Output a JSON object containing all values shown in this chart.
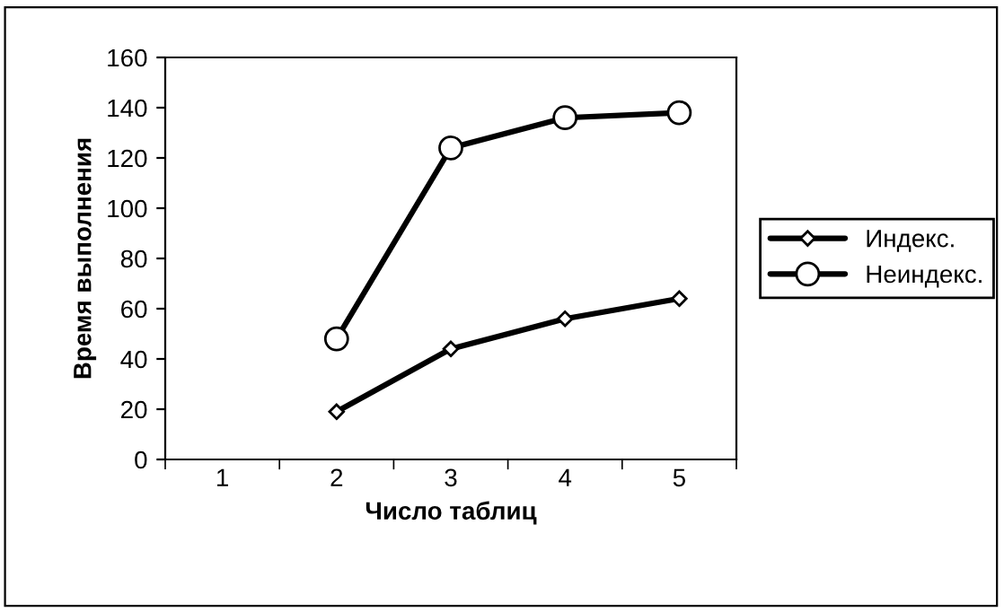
{
  "chart_data": {
    "type": "line",
    "xlabel": "Число таблиц",
    "ylabel": "Время выполнения",
    "categories": [
      "1",
      "2",
      "3",
      "4",
      "5"
    ],
    "series": [
      {
        "name": "Индекс.",
        "color": "#000000",
        "marker": "diamond",
        "values": [
          null,
          19,
          44,
          56,
          64
        ]
      },
      {
        "name": "Неиндекс.",
        "color": "#000000",
        "marker": "circle",
        "values": [
          null,
          48,
          124,
          136,
          138
        ]
      }
    ],
    "ylim": [
      0,
      160
    ],
    "yticks": [
      0,
      20,
      40,
      60,
      80,
      100,
      120,
      140,
      160
    ],
    "grid": false,
    "legend": "right",
    "line_style": "solid"
  }
}
